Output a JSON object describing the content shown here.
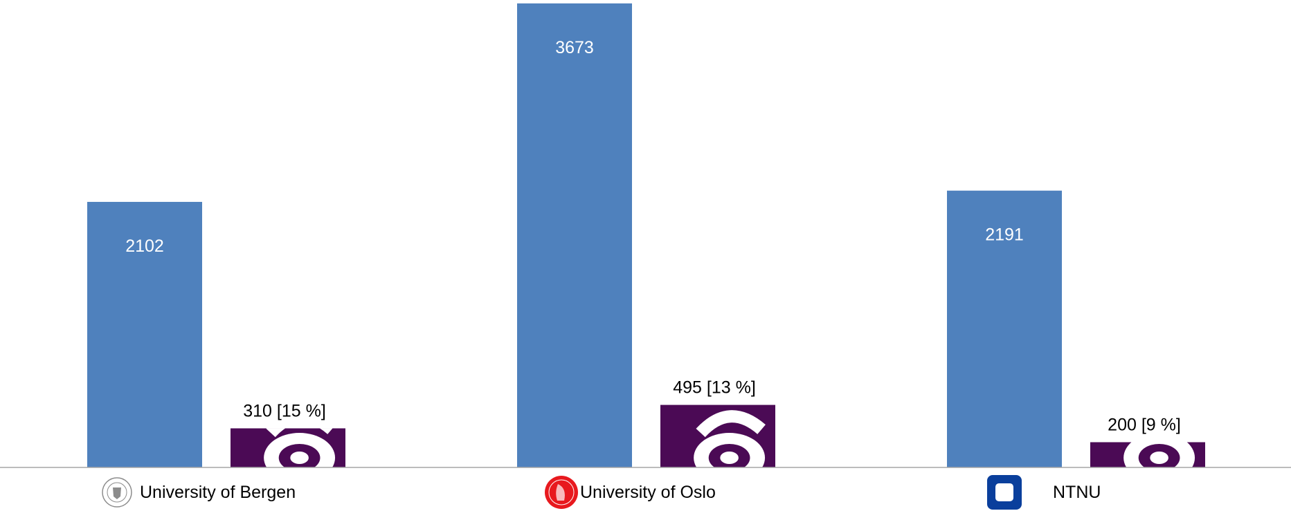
{
  "chart_data": {
    "type": "bar",
    "categories": [
      "University of Bergen",
      "University of Oslo",
      "NTNU"
    ],
    "series": [
      {
        "values": [
          2102,
          3673,
          2191
        ],
        "labels": [
          "2102",
          "3673",
          "2191"
        ],
        "color": "#4f81bd"
      },
      {
        "values": [
          310,
          495,
          200
        ],
        "labels": [
          "310 [15 %]",
          "495 [13 %]",
          "200 [9 %]"
        ],
        "color": "#4b0a55",
        "fill_icon": "open-access-icon"
      }
    ],
    "title": "",
    "xlabel": "",
    "ylabel": "",
    "ylim": [
      0,
      3700
    ],
    "grid": false,
    "legend": "none",
    "category_icons": [
      "university-of-bergen-seal-icon",
      "university-of-oslo-seal-icon",
      "ntnu-logo-icon"
    ],
    "colors": {
      "axis": "#a6a6a6",
      "uib_seal": "#8c8c8c",
      "uio_seal": "#e8191e",
      "ntnu_logo": "#0a3f9c"
    }
  }
}
